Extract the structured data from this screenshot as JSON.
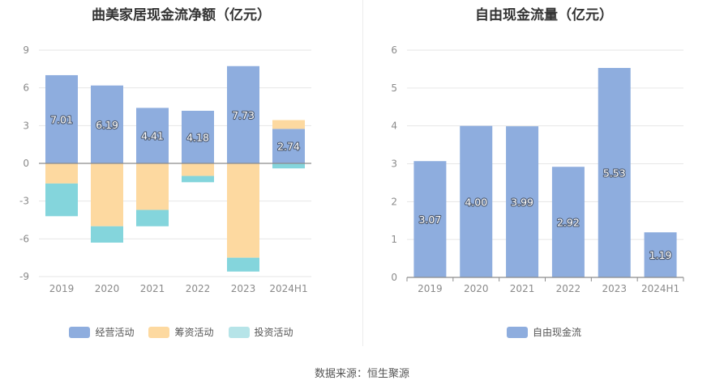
{
  "source_text": "数据来源：恒生聚源",
  "colors": {
    "operating": "#8eadde",
    "financing": "#fdd9a0",
    "investing": "#84d5dc",
    "free_cash_flow": "#8eadde",
    "grid": "#e6e6e6",
    "axis": "#8c8c8c"
  },
  "chart_data": [
    {
      "type": "bar",
      "stacked": true,
      "title": "曲美家居现金流净额（亿元）",
      "categories": [
        "2019",
        "2020",
        "2021",
        "2022",
        "2023",
        "2024H1"
      ],
      "yticks": [
        "9",
        "6",
        "3",
        "0",
        "-3",
        "-6",
        "-9"
      ],
      "ylim": [
        -9,
        9
      ],
      "series": [
        {
          "name": "经营活动",
          "color": "#8eadde",
          "values": [
            7.01,
            6.19,
            4.41,
            4.18,
            7.73,
            2.74
          ],
          "labels": [
            "7.01",
            "6.19",
            "4.41",
            "4.18",
            "7.73",
            "2.74"
          ]
        },
        {
          "name": "筹资活动",
          "color": "#fdd9a0",
          "values": [
            -1.6,
            -5.0,
            -3.7,
            -1.0,
            -7.5,
            0.7
          ]
        },
        {
          "name": "投资活动",
          "color": "#84d5dc",
          "values": [
            -2.6,
            -1.3,
            -1.3,
            -0.5,
            -1.1,
            -0.4
          ]
        }
      ],
      "legend_position": "bottom",
      "grid": true
    },
    {
      "type": "bar",
      "title": "自由现金流量（亿元）",
      "categories": [
        "2019",
        "2020",
        "2021",
        "2022",
        "2023",
        "2024H1"
      ],
      "yticks": [
        "6",
        "5",
        "4",
        "3",
        "2",
        "1",
        "0"
      ],
      "ylim": [
        0,
        6
      ],
      "series": [
        {
          "name": "自由现金流",
          "color": "#8eadde",
          "values": [
            3.07,
            4.0,
            3.99,
            2.92,
            5.53,
            1.19
          ],
          "labels": [
            "3.07",
            "4.00",
            "3.99",
            "2.92",
            "5.53",
            "1.19"
          ]
        }
      ],
      "legend_position": "bottom",
      "grid": true
    }
  ]
}
